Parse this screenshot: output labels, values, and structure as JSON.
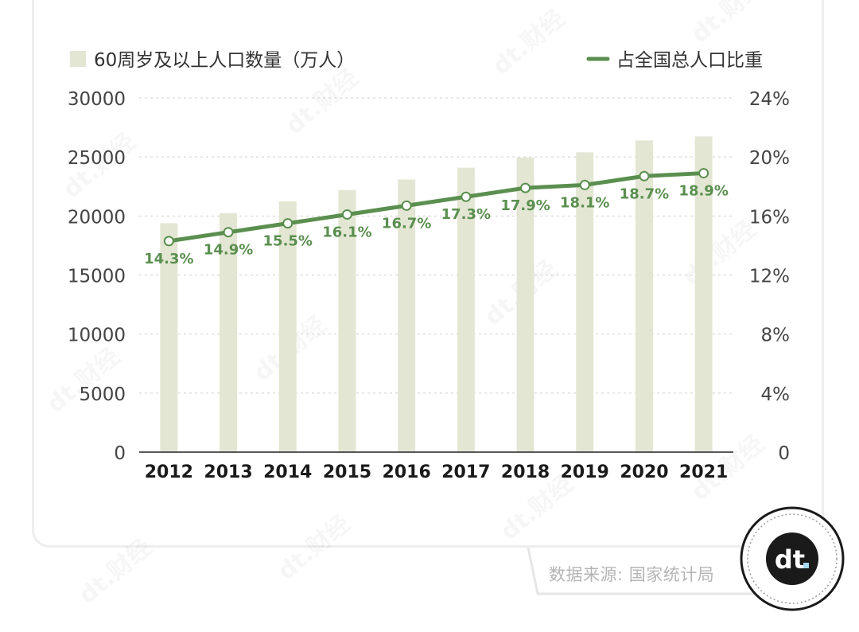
{
  "chart_data": {
    "type": "bar+line",
    "categories": [
      "2012",
      "2013",
      "2014",
      "2015",
      "2016",
      "2017",
      "2018",
      "2019",
      "2020",
      "2021"
    ],
    "series": [
      {
        "name": "60周岁及以上人口数量（万人）",
        "type": "bar",
        "axis": "left",
        "color": "#e3e6d3",
        "values": [
          19390,
          20243,
          21242,
          22200,
          23086,
          24090,
          24949,
          25388,
          26402,
          26736
        ]
      },
      {
        "name": "占全国总人口比重",
        "type": "line",
        "axis": "right",
        "color": "#5a8f4f",
        "values": [
          14.3,
          14.9,
          15.5,
          16.1,
          16.7,
          17.3,
          17.9,
          18.1,
          18.7,
          18.9
        ],
        "labels": [
          "14.3%",
          "14.9%",
          "15.5%",
          "16.1%",
          "16.7%",
          "17.3%",
          "17.9%",
          "18.1%",
          "18.7%",
          "18.9%"
        ]
      }
    ],
    "y_left": {
      "ylim": [
        0,
        30000
      ],
      "ticks": [
        "0",
        "5000",
        "10000",
        "15000",
        "20000",
        "25000",
        "30000"
      ]
    },
    "y_right": {
      "ylim": [
        0,
        24
      ],
      "ticks": [
        "0",
        "4%",
        "8%",
        "12%",
        "16%",
        "20%",
        "24%"
      ]
    },
    "grid": "dashed horizontal",
    "legend_position": "top"
  },
  "source": "数据来源: 国家统计局",
  "logo_text": "dt.",
  "watermark": "dt.财经",
  "colors": {
    "bar": "#e3e6d3",
    "line": "#5a8f4f",
    "label": "#5a8f4f",
    "axis_text": "#444444",
    "year_text": "#1a1a1a",
    "grid": "#cfcfcf"
  }
}
